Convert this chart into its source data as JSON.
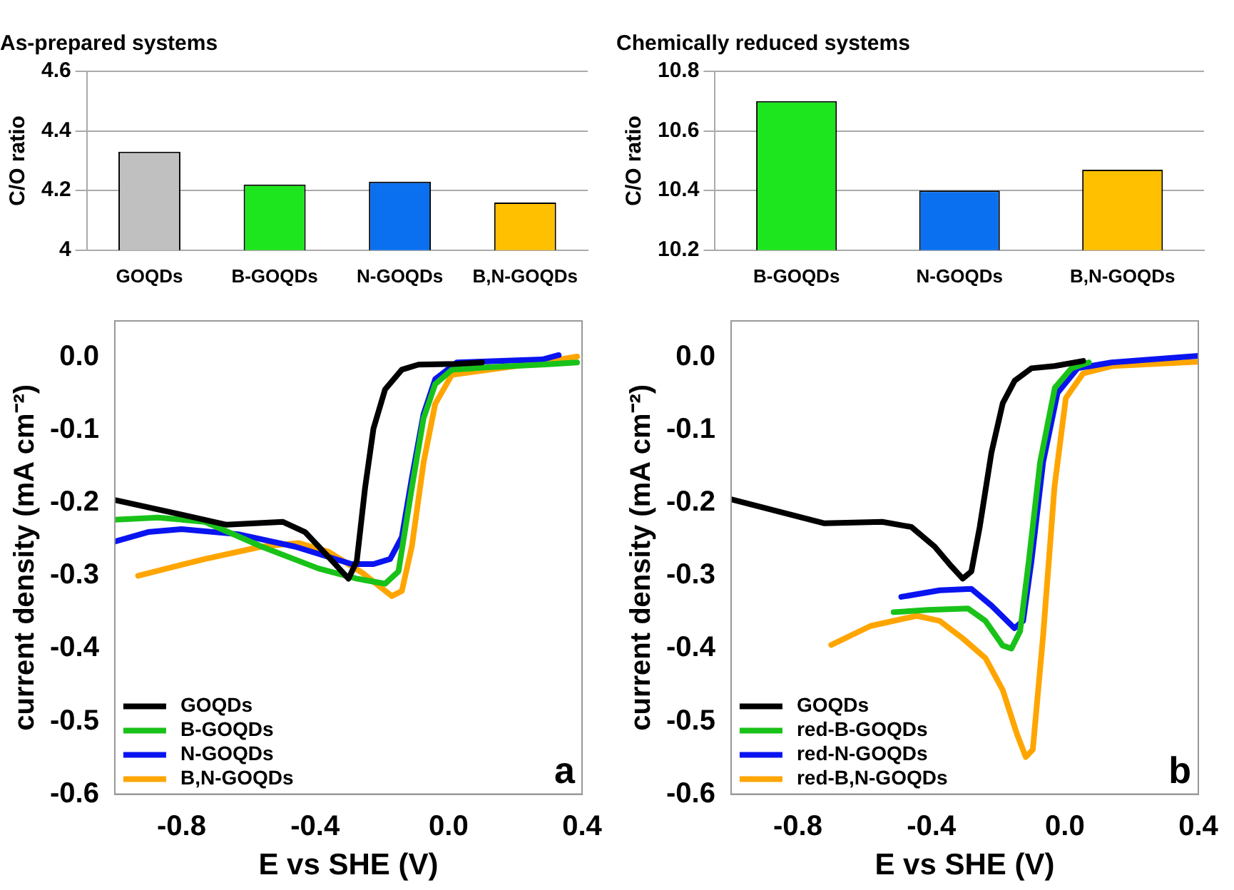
{
  "chart_data": [
    {
      "type": "bar",
      "title": "As-prepared systems",
      "ylabel": "C/O ratio",
      "categories": [
        "GOQDs",
        "B-GOQDs",
        "N-GOQDs",
        "B,N-GOQDs"
      ],
      "values": [
        4.33,
        4.22,
        4.23,
        4.16
      ],
      "colors": [
        "#c0c0c0",
        "#1ee61e",
        "#0a70f0",
        "#ffc000"
      ],
      "ylim": [
        4,
        4.6
      ],
      "yticks": [
        4,
        4.2,
        4.4,
        4.6
      ],
      "grid": "y",
      "legend": false
    },
    {
      "type": "bar",
      "title": "Chemically reduced systems",
      "ylabel": "C/O ratio",
      "categories": [
        "B-GOQDs",
        "N-GOQDs",
        "B,N-GOQDs"
      ],
      "values": [
        10.7,
        10.4,
        10.47
      ],
      "colors": [
        "#1ee61e",
        "#0a70f0",
        "#ffc000"
      ],
      "ylim": [
        10.2,
        10.8
      ],
      "yticks": [
        10.2,
        10.4,
        10.6,
        10.8
      ],
      "grid": "y",
      "legend": false
    },
    {
      "type": "line",
      "xlabel": "E vs SHE (V)",
      "ylabel": "current density (mA cm⁻²)",
      "annotations": [
        "a"
      ],
      "legend": "bottom left",
      "grid": false,
      "marker": "none",
      "line_style": "solid",
      "xlim": [
        -1.0,
        0.4
      ],
      "xticks": [
        {
          "value": -0.8,
          "label": "-0.8"
        },
        {
          "value": -0.4,
          "label": "-0.4"
        },
        {
          "value": 0,
          "label": "0.0"
        },
        {
          "value": 0.4,
          "label": "0.4"
        }
      ],
      "ylim": [
        -0.6,
        0.05
      ],
      "yticks": [
        {
          "value": 0,
          "label": "0.0"
        },
        {
          "value": -0.1,
          "label": "-0.1"
        },
        {
          "value": -0.2,
          "label": "-0.2"
        },
        {
          "value": -0.3,
          "label": "-0.3"
        },
        {
          "value": -0.4,
          "label": "-0.4"
        },
        {
          "value": -0.5,
          "label": "-0.5"
        },
        {
          "value": -0.6,
          "label": "-0.6"
        }
      ],
      "series": [
        {
          "name": "GOQDs",
          "color": "#000000",
          "x": [
            -1.0,
            -0.8,
            -0.665,
            -0.496,
            -0.43,
            -0.36,
            -0.3,
            -0.275,
            -0.25,
            -0.225,
            -0.19,
            -0.14,
            -0.09,
            0.025,
            0.1
          ],
          "values": [
            -0.196,
            -0.216,
            -0.23,
            -0.226,
            -0.24,
            -0.274,
            -0.304,
            -0.28,
            -0.179,
            -0.098,
            -0.044,
            -0.017,
            -0.01,
            -0.009,
            -0.007
          ]
        },
        {
          "name": "B-GOQDs",
          "color": "#19c219",
          "x": [
            -1.0,
            -0.87,
            -0.73,
            -0.56,
            -0.39,
            -0.275,
            -0.19,
            -0.15,
            -0.11,
            -0.075,
            -0.04,
            0.01,
            0.11,
            0.28,
            0.385
          ],
          "values": [
            -0.223,
            -0.22,
            -0.226,
            -0.26,
            -0.29,
            -0.304,
            -0.311,
            -0.294,
            -0.179,
            -0.084,
            -0.037,
            -0.017,
            -0.014,
            -0.01,
            -0.007
          ]
        },
        {
          "name": "N-GOQDs",
          "color": "#0a14f0",
          "x": [
            -1.0,
            -0.9,
            -0.8,
            -0.63,
            -0.46,
            -0.29,
            -0.225,
            -0.175,
            -0.14,
            -0.11,
            -0.075,
            -0.04,
            0.025,
            0.28,
            0.33
          ],
          "values": [
            -0.253,
            -0.24,
            -0.236,
            -0.243,
            -0.26,
            -0.284,
            -0.284,
            -0.277,
            -0.247,
            -0.166,
            -0.078,
            -0.03,
            -0.007,
            -0.003,
            0.003
          ]
        },
        {
          "name": "B,N-GOQDs",
          "color": "#ffa500",
          "x": [
            -0.93,
            -0.73,
            -0.56,
            -0.45,
            -0.36,
            -0.255,
            -0.17,
            -0.14,
            -0.11,
            -0.075,
            -0.04,
            0.01,
            0.28,
            0.385
          ],
          "values": [
            -0.3,
            -0.277,
            -0.26,
            -0.255,
            -0.267,
            -0.297,
            -0.328,
            -0.321,
            -0.26,
            -0.145,
            -0.064,
            -0.024,
            -0.007,
            0.001
          ]
        }
      ]
    },
    {
      "type": "line",
      "xlabel": "E vs SHE (V)",
      "ylabel": "current density (mA cm⁻²)",
      "annotations": [
        "b"
      ],
      "legend": "bottom left",
      "grid": false,
      "marker": "none",
      "line_style": "solid",
      "xlim": [
        -1.0,
        0.4
      ],
      "xticks": [
        {
          "value": -0.8,
          "label": "-0.8"
        },
        {
          "value": -0.4,
          "label": "-0.4"
        },
        {
          "value": 0,
          "label": "0.0"
        },
        {
          "value": 0.4,
          "label": "0.4"
        }
      ],
      "ylim": [
        -0.6,
        0.05
      ],
      "yticks": [
        {
          "value": 0,
          "label": "0.0"
        },
        {
          "value": -0.1,
          "label": "-0.1"
        },
        {
          "value": -0.2,
          "label": "-0.2"
        },
        {
          "value": -0.3,
          "label": "-0.3"
        },
        {
          "value": -0.4,
          "label": "-0.4"
        },
        {
          "value": -0.5,
          "label": "-0.5"
        },
        {
          "value": -0.6,
          "label": "-0.6"
        }
      ],
      "series": [
        {
          "name": "GOQDs",
          "color": "#000000",
          "x": [
            -1.0,
            -0.857,
            -0.72,
            -0.547,
            -0.46,
            -0.39,
            -0.34,
            -0.306,
            -0.28,
            -0.255,
            -0.22,
            -0.186,
            -0.15,
            -0.1,
            -0.03,
            0.055
          ],
          "values": [
            -0.195,
            -0.212,
            -0.228,
            -0.226,
            -0.233,
            -0.26,
            -0.287,
            -0.304,
            -0.294,
            -0.233,
            -0.131,
            -0.063,
            -0.032,
            -0.015,
            -0.012,
            -0.005
          ]
        },
        {
          "name": "red-B-GOQDs",
          "color": "#19c219",
          "x": [
            -0.513,
            -0.41,
            -0.29,
            -0.238,
            -0.186,
            -0.16,
            -0.134,
            -0.108,
            -0.074,
            -0.03,
            0.02,
            0.072
          ],
          "values": [
            -0.35,
            -0.347,
            -0.345,
            -0.362,
            -0.396,
            -0.4,
            -0.376,
            -0.28,
            -0.144,
            -0.042,
            -0.015,
            -0.007
          ]
        },
        {
          "name": "red-N-GOQDs",
          "color": "#0a14f0",
          "x": [
            -0.49,
            -0.375,
            -0.28,
            -0.22,
            -0.151,
            -0.125,
            -0.1,
            -0.065,
            -0.022,
            0.038,
            0.14,
            0.4
          ],
          "values": [
            -0.329,
            -0.32,
            -0.318,
            -0.341,
            -0.372,
            -0.362,
            -0.28,
            -0.144,
            -0.049,
            -0.015,
            -0.007,
            0.002
          ]
        },
        {
          "name": "red-B,N-GOQDs",
          "color": "#ffa500",
          "x": [
            -0.7,
            -0.582,
            -0.444,
            -0.375,
            -0.306,
            -0.238,
            -0.186,
            -0.143,
            -0.117,
            -0.096,
            -0.065,
            -0.031,
            0.003,
            0.055,
            0.141,
            0.4
          ],
          "values": [
            -0.395,
            -0.369,
            -0.355,
            -0.362,
            -0.386,
            -0.413,
            -0.457,
            -0.518,
            -0.549,
            -0.539,
            -0.382,
            -0.178,
            -0.056,
            -0.022,
            -0.012,
            -0.006
          ]
        }
      ]
    }
  ]
}
